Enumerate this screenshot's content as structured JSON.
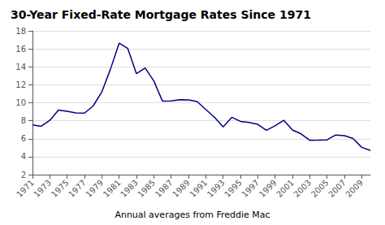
{
  "chart_data": {
    "type": "line",
    "title": "30-Year Fixed-Rate Mortgage Rates Since 1971",
    "subtitle": "Annual averages from Freddie Mac",
    "x": [
      1971,
      1972,
      1973,
      1974,
      1975,
      1976,
      1977,
      1978,
      1979,
      1980,
      1981,
      1982,
      1983,
      1984,
      1985,
      1986,
      1987,
      1988,
      1989,
      1990,
      1991,
      1992,
      1993,
      1994,
      1995,
      1996,
      1997,
      1998,
      1999,
      2000,
      2001,
      2002,
      2003,
      2004,
      2005,
      2006,
      2007,
      2008,
      2009,
      2010
    ],
    "values": [
      7.54,
      7.38,
      8.04,
      9.19,
      9.05,
      8.87,
      8.85,
      9.64,
      11.2,
      13.74,
      16.63,
      16.04,
      13.24,
      13.88,
      12.43,
      10.19,
      10.21,
      10.34,
      10.32,
      10.13,
      9.25,
      8.39,
      7.31,
      8.38,
      7.93,
      7.81,
      7.6,
      6.94,
      7.44,
      8.05,
      6.97,
      6.54,
      5.83,
      5.84,
      5.87,
      6.41,
      6.34,
      6.03,
      5.04,
      4.69
    ],
    "color": "#000080",
    "xlim": [
      1971,
      2010
    ],
    "xticks": [
      1971,
      1973,
      1975,
      1977,
      1979,
      1981,
      1983,
      1985,
      1987,
      1989,
      1991,
      1993,
      1995,
      1997,
      1999,
      2001,
      2003,
      2005,
      2007,
      2009
    ],
    "ylim": [
      2,
      18
    ],
    "yticks": [
      2,
      4,
      6,
      8,
      10,
      12,
      14,
      16,
      18
    ],
    "grid": true
  }
}
